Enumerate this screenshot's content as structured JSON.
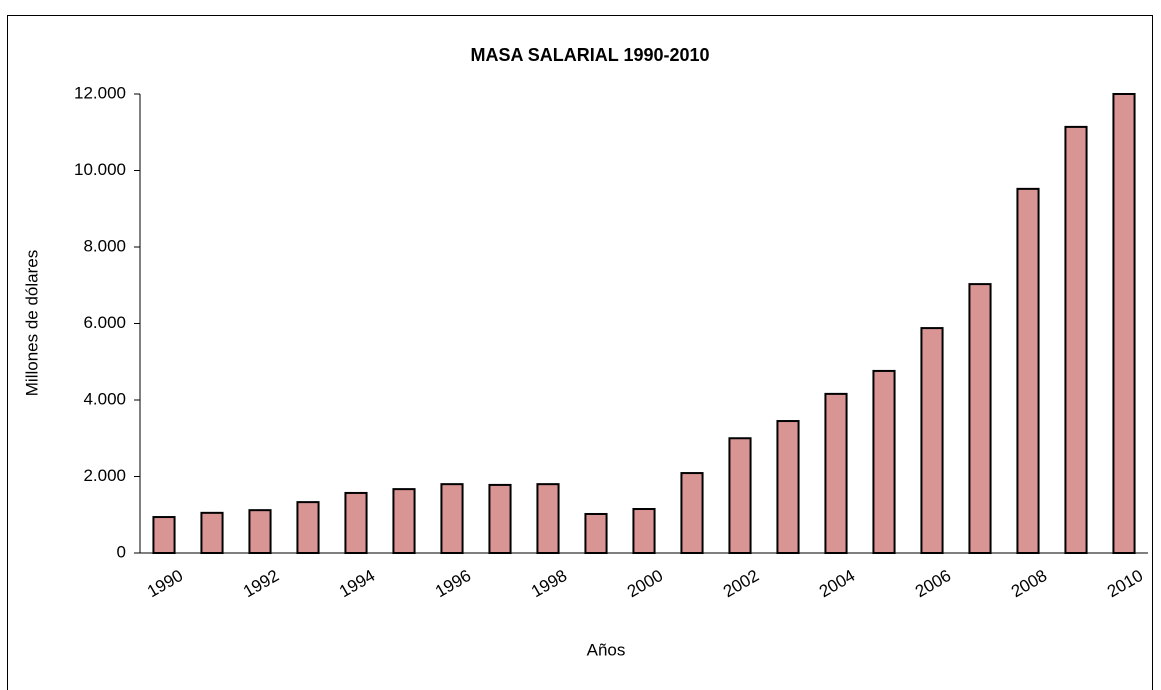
{
  "chart_data": {
    "type": "bar",
    "title": "MASA SALARIAL 1990-2010",
    "x_label": "Años",
    "y_label": "Millones de dólares",
    "categories": [
      "1990",
      null,
      "1992",
      null,
      "1994",
      null,
      "1996",
      null,
      "1998",
      null,
      "2000",
      null,
      "2002",
      null,
      "2004",
      null,
      "2006",
      null,
      "2008",
      null,
      "2010"
    ],
    "values": [
      940,
      1050,
      1120,
      1330,
      1570,
      1670,
      1800,
      1780,
      1800,
      1020,
      1150,
      2090,
      3000,
      3450,
      4160,
      4760,
      5880,
      7030,
      9520,
      11140,
      12000
    ],
    "color": "#d99594",
    "ylim": [
      0,
      12000
    ],
    "yticks": [
      0,
      {
        "value": 2000,
        "label": "2.000"
      },
      {
        "value": 4000,
        "label": "4.000"
      },
      {
        "value": 6000,
        "label": "6.000"
      },
      {
        "value": 8000,
        "label": "8.000"
      },
      {
        "value": 10000,
        "label": "10.000"
      },
      {
        "value": 12000,
        "label": "12.000"
      }
    ],
    "grid": false
  }
}
